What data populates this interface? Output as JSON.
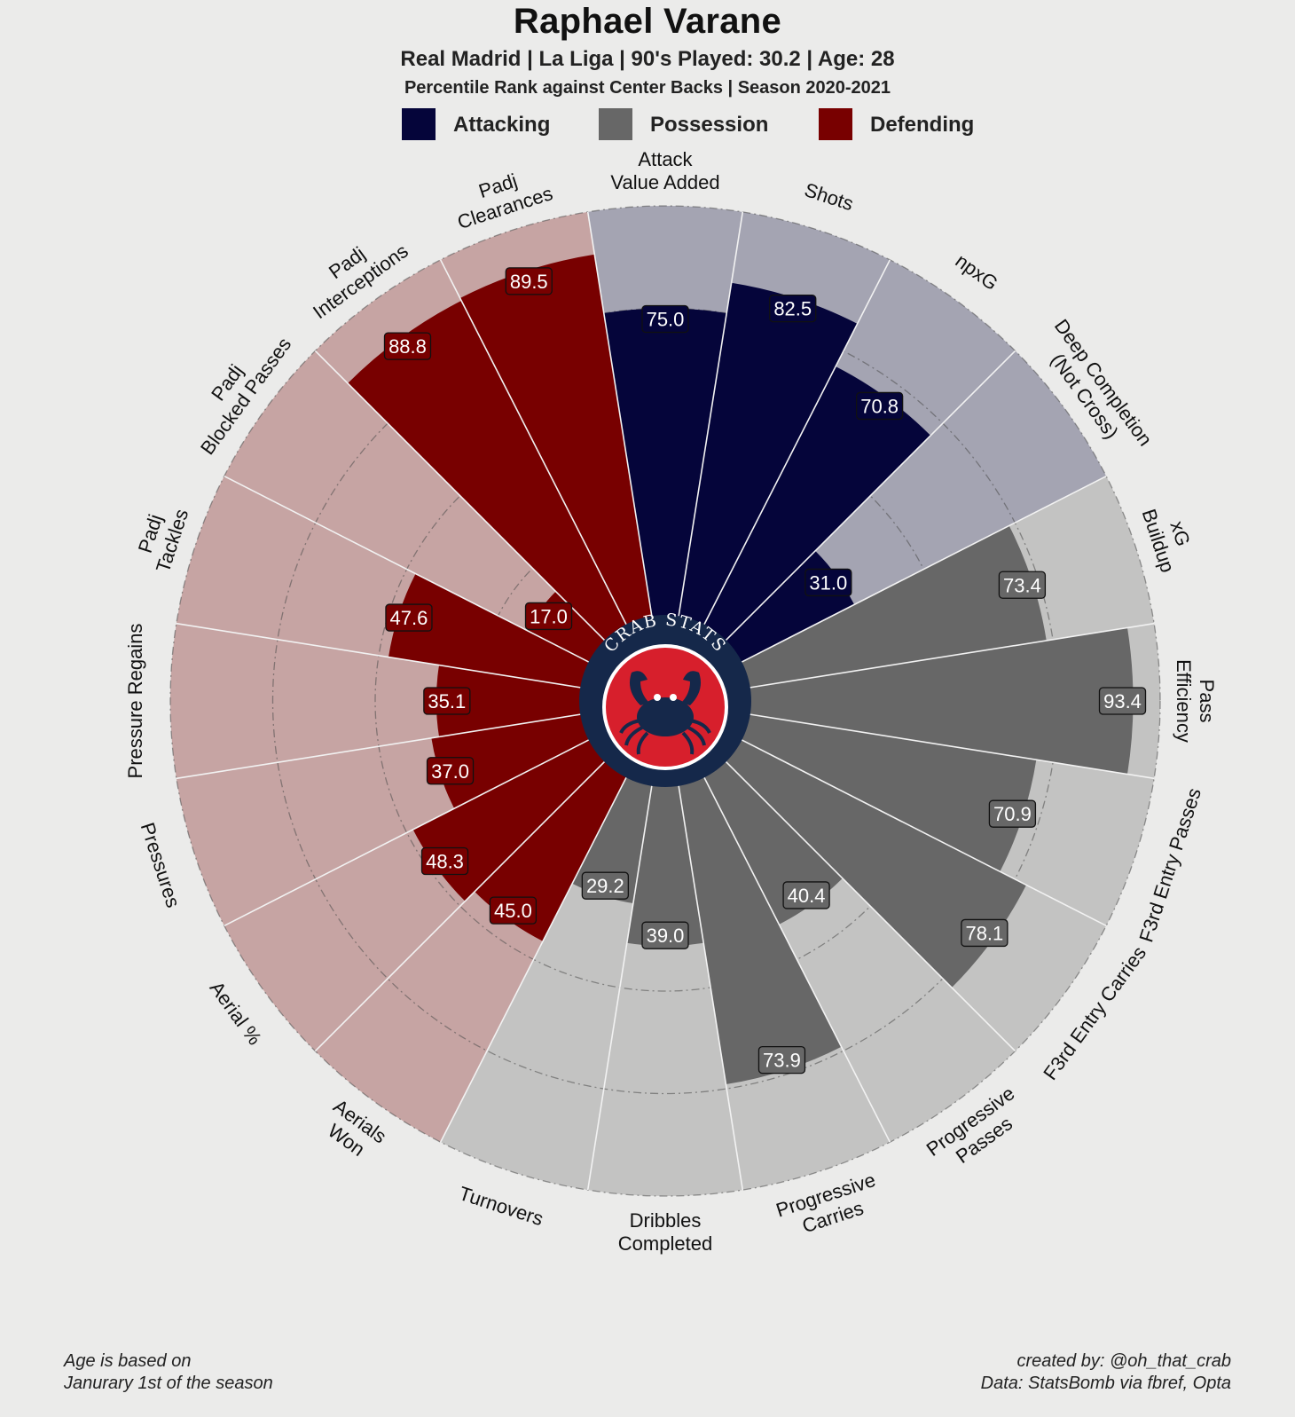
{
  "header": {
    "title": "Raphael Varane",
    "subtitle": "Real Madrid | La Liga | 90's Played: 30.2 | Age: 28",
    "subtitle2": "Percentile Rank against Center Backs  | Season 2020-2021"
  },
  "legend": [
    {
      "label": "Attacking",
      "color": "#05053a"
    },
    {
      "label": "Possession",
      "color": "#676767"
    },
    {
      "label": "Defending",
      "color": "#780000"
    }
  ],
  "logo": {
    "text": "CRAB STATS",
    "ring_color": "#15284a",
    "fill_color": "#d71f2c",
    "icon": "crab-icon"
  },
  "chart_data": {
    "type": "polar-bar",
    "title": "Raphael Varane",
    "rlim": [
      0,
      100
    ],
    "grid": true,
    "legend_position": "top",
    "groups": {
      "Attacking": {
        "color": "#05053a",
        "bg": "#a4a4b2"
      },
      "Possession": {
        "color": "#676767",
        "bg": "#c3c3c2"
      },
      "Defending": {
        "color": "#780000",
        "bg": "#c6a4a3"
      }
    },
    "categories": [
      {
        "label": [
          "Attack",
          "Value Added"
        ],
        "value": 75.0,
        "group": "Attacking"
      },
      {
        "label": [
          "Shots"
        ],
        "value": 82.5,
        "group": "Attacking"
      },
      {
        "label": [
          "npxG"
        ],
        "value": 70.8,
        "group": "Attacking"
      },
      {
        "label": [
          "Deep Completion",
          "(Not Cross)"
        ],
        "value": 31.0,
        "group": "Attacking"
      },
      {
        "label": [
          "xG",
          "Buildup"
        ],
        "value": 73.4,
        "group": "Possession"
      },
      {
        "label": [
          "Pass",
          "Efficiency"
        ],
        "value": 93.4,
        "group": "Possession"
      },
      {
        "label": [
          "F3rd Entry Passes"
        ],
        "value": 70.9,
        "group": "Possession"
      },
      {
        "label": [
          "F3rd Entry Carries"
        ],
        "value": 78.1,
        "group": "Possession"
      },
      {
        "label": [
          "Progressive",
          "Passes"
        ],
        "value": 40.4,
        "group": "Possession"
      },
      {
        "label": [
          "Progressive",
          "Carries"
        ],
        "value": 73.9,
        "group": "Possession"
      },
      {
        "label": [
          "Dribbles",
          "Completed"
        ],
        "value": 39.0,
        "group": "Possession"
      },
      {
        "label": [
          "Turnovers"
        ],
        "value": 29.2,
        "group": "Possession"
      },
      {
        "label": [
          "Aerials",
          "Won"
        ],
        "value": 45.0,
        "group": "Defending"
      },
      {
        "label": [
          "Aerial %"
        ],
        "value": 48.3,
        "group": "Defending"
      },
      {
        "label": [
          "Pressures"
        ],
        "value": 37.0,
        "group": "Defending"
      },
      {
        "label": [
          "Pressure Regains"
        ],
        "value": 35.1,
        "group": "Defending"
      },
      {
        "label": [
          "Padj",
          "Tackles"
        ],
        "value": 47.6,
        "group": "Defending"
      },
      {
        "label": [
          "Padj",
          "Blocked Passes"
        ],
        "value": 17.0,
        "group": "Defending"
      },
      {
        "label": [
          "Padj",
          "Interceptions"
        ],
        "value": 88.8,
        "group": "Defending"
      },
      {
        "label": [
          "Padj",
          "Clearances"
        ],
        "value": 89.5,
        "group": "Defending"
      }
    ]
  },
  "footer": {
    "left_line1": "Age is based on",
    "left_line2": "Janurary 1st of the season",
    "right_line1": "created by: @oh_that_crab",
    "right_line2": "Data: StatsBomb via fbref, Opta"
  }
}
